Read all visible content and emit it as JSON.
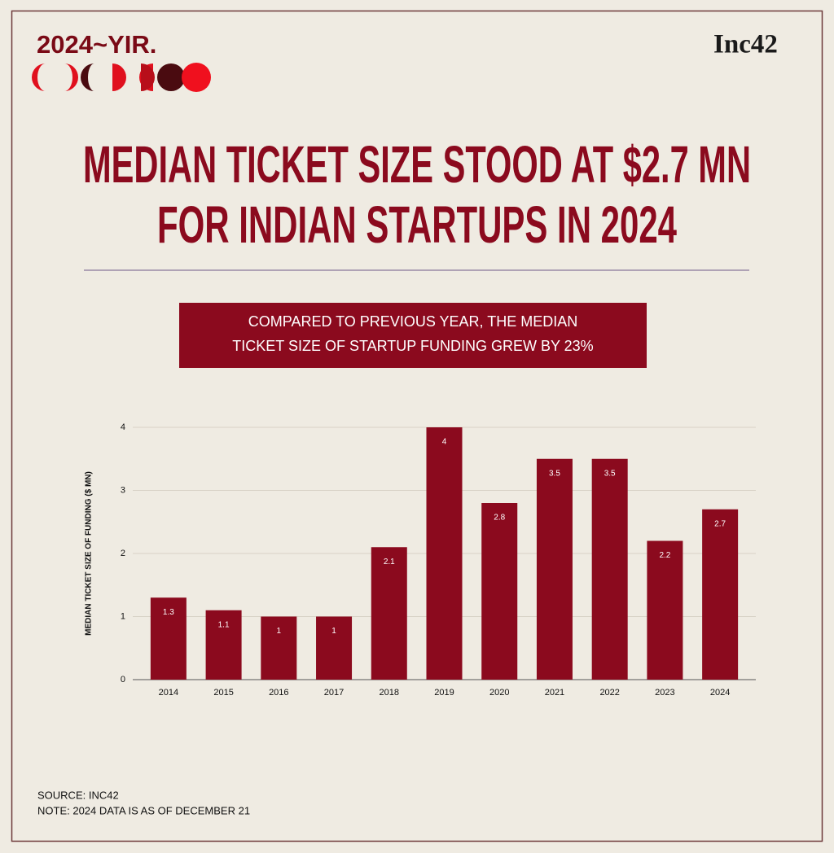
{
  "chart_data": {
    "type": "bar",
    "brand": "2024~YIR.",
    "logo": "Inc42",
    "title": [
      "MEDIAN TICKET SIZE STOOD AT $2.7 MN",
      "FOR INDIAN STARTUPS IN 2024"
    ],
    "subtitle": [
      "COMPARED TO PREVIOUS YEAR, THE MEDIAN",
      "TICKET SIZE OF STARTUP FUNDING GREW BY 23%"
    ],
    "y_label": "MEDIAN TICKET SIZE OF FUNDING ($ MN)",
    "categories": [
      "2014",
      "2015",
      "2016",
      "2017",
      "2018",
      "2019",
      "2020",
      "2021",
      "2022",
      "2023",
      "2024"
    ],
    "values": [
      1.3,
      1.1,
      1,
      1,
      2.1,
      4,
      2.8,
      3.5,
      3.5,
      2.2,
      2.7
    ],
    "color": "#8b0a1e",
    "ylim": [
      0,
      4
    ],
    "yticks": [
      0,
      1,
      2,
      3,
      4
    ],
    "grid": true,
    "source": "SOURCE: INC42",
    "note": "NOTE: 2024 DATA IS AS OF DECEMBER 21"
  }
}
